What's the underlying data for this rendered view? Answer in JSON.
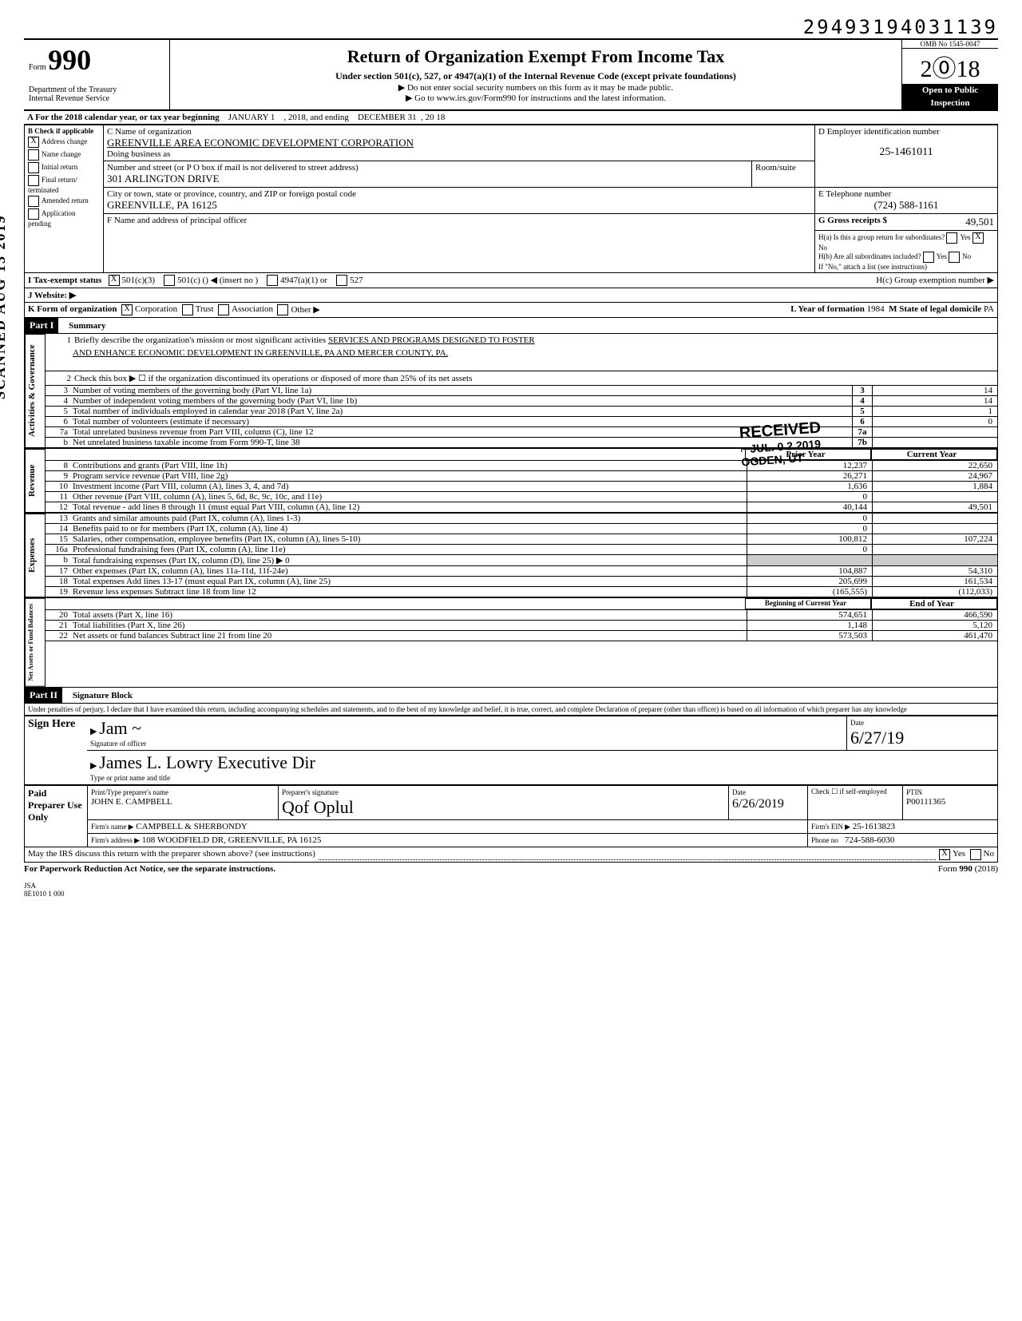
{
  "top_number": "29493194031139",
  "omb": "OMB No 1545-0047",
  "form_label": "Form",
  "form_number": "990",
  "dept1": "Department of the Treasury",
  "dept2": "Internal Revenue Service",
  "title": "Return of Organization Exempt From Income Tax",
  "subtitle": "Under section 501(c), 527, or 4947(a)(1) of the Internal Revenue Code (except private foundations)",
  "line_ssn": "▶ Do not enter social security numbers on this form as it may be made public.",
  "line_goto": "▶ Go to www.irs.gov/Form990 for instructions and the latest information.",
  "year_big": "2018",
  "open": "Open to Public",
  "inspection": "Inspection",
  "A_prefix": "A  For the 2018 calendar year, or tax year beginning",
  "A_begin": "JANUARY 1",
  "A_mid": ", 2018, and ending",
  "A_end": "DECEMBER 31",
  "A_yr": ", 20 18",
  "B_label": "B  Check if applicable",
  "B_opts": [
    "Address change",
    "Name change",
    "Initial return",
    "Final return/ terminated",
    "Amended return",
    "Application pending"
  ],
  "B_checked": 0,
  "C_label": "C Name of organization",
  "C_name": "GREENVILLE AREA ECONOMIC DEVELOPMENT CORPORATION",
  "C_dba": "Doing business as",
  "C_addr_label": "Number and street (or P O  box if mail is not delivered to street address)",
  "C_room": "Room/suite",
  "C_addr": "301 ARLINGTON DRIVE",
  "C_city_label": "City or town, state or province, country, and ZIP or foreign postal code",
  "C_city": "GREENVILLE, PA  16125",
  "D_label": "D Employer identification number",
  "D_val": "25-1461011",
  "E_label": "E Telephone number",
  "E_val": "(724) 588-1161",
  "F_label": "F Name and address of principal officer",
  "G_label": "G Gross receipts $",
  "G_val": "49,501",
  "Ha_label": "H(a) Is this a group return for subordinates?",
  "Hb_label": "H(b) Are all subordinates included?",
  "H_note": "If \"No,\" attach a list  (see instructions)",
  "Hc_label": "H(c) Group exemption number  ▶",
  "I_label": "I     Tax-exempt status",
  "I_501c3": "501(c)(3)",
  "I_501c": "501(c) (",
  "I_insert": ")  ◀    (insert no )",
  "I_4947": "4947(a)(1) or",
  "I_527": "527",
  "J_label": "J    Website: ▶",
  "K_label": "K   Form of organization",
  "K_corp": "Corporation",
  "K_trust": "Trust",
  "K_assoc": "Association",
  "K_other": "Other ▶",
  "L_label": "L Year of formation",
  "L_val": "1984",
  "M_label": "M State of legal domicile",
  "M_val": "PA",
  "part1": "Part I",
  "part1_t": "Summary",
  "summary": {
    "l1a": "Briefly describe the organization's mission or most significant activities",
    "l1b": "SERVICES AND PROGRAMS DESIGNED TO FOSTER",
    "l1c": "AND ENHANCE ECONOMIC DEVELOPMENT IN GREENVILLE, PA AND MERCER COUNTY, PA.",
    "l2": "Check this box ▶ ☐  if the organization discontinued its operations or disposed of more than 25% of its net assets",
    "rows_gov": [
      {
        "n": "3",
        "t": "Number of voting members of the governing body (Part VI, line 1a)",
        "c": "3",
        "v": "14"
      },
      {
        "n": "4",
        "t": "Number of independent voting members of the governing body (Part VI, line 1b)",
        "c": "4",
        "v": "14"
      },
      {
        "n": "5",
        "t": "Total number of individuals employed in calendar year 2018 (Part V, line 2a)",
        "c": "5",
        "v": "1"
      },
      {
        "n": "6",
        "t": "Total number of volunteers (estimate if necessary)",
        "c": "6",
        "v": "0"
      },
      {
        "n": "7a",
        "t": "Total unrelated business revenue from Part VIII, column (C), line 12",
        "c": "7a",
        "v": ""
      },
      {
        "n": "b",
        "t": "Net unrelated business taxable income from Form 990-T, line 38",
        "c": "7b",
        "v": ""
      }
    ],
    "col_prior": "Prior Year",
    "col_curr": "Current Year",
    "rows_rev": [
      {
        "n": "8",
        "t": "Contributions and grants (Part VIII, line 1h)",
        "p": "12,237",
        "c": "22,650"
      },
      {
        "n": "9",
        "t": "Program service revenue (Part VIII, line 2g)",
        "p": "26,271",
        "c": "24,967"
      },
      {
        "n": "10",
        "t": "Investment income (Part VIII, column (A), lines 3, 4, and 7d)",
        "p": "1,636",
        "c": "1,884"
      },
      {
        "n": "11",
        "t": "Other revenue (Part VIII, column (A), lines 5, 6d, 8c, 9c, 10c, and 11e)",
        "p": "0",
        "c": ""
      },
      {
        "n": "12",
        "t": "Total revenue - add lines 8 through 11 (must equal Part VIII, column (A), line 12)",
        "p": "40,144",
        "c": "49,501"
      }
    ],
    "rows_exp": [
      {
        "n": "13",
        "t": "Grants and similar amounts paid (Part IX, column (A), lines 1-3)",
        "p": "0",
        "c": ""
      },
      {
        "n": "14",
        "t": "Benefits paid to or for members (Part IX, column (A), line 4)",
        "p": "0",
        "c": ""
      },
      {
        "n": "15",
        "t": "Salaries, other compensation, employee benefits (Part IX, column (A), lines 5-10)",
        "p": "100,812",
        "c": "107,224"
      },
      {
        "n": "16a",
        "t": "Professional fundraising fees (Part IX, column (A), line 11e)",
        "p": "0",
        "c": ""
      },
      {
        "n": "b",
        "t": "Total fundraising expenses (Part IX, column (D), line 25) ▶  0",
        "p": "",
        "c": "",
        "noval": true
      },
      {
        "n": "17",
        "t": "Other expenses (Part IX, column (A), lines 11a-11d, 11f-24e)",
        "p": "104,887",
        "c": "54,310"
      },
      {
        "n": "18",
        "t": "Total expenses  Add lines 13-17 (must equal Part IX, column (A), line 25)",
        "p": "205,699",
        "c": "161,534"
      },
      {
        "n": "19",
        "t": "Revenue less expenses  Subtract line 18 from line 12",
        "p": "(165,555)",
        "c": "(112,033)"
      }
    ],
    "col_boy": "Beginning of Current Year",
    "col_eoy": "End of Year",
    "rows_net": [
      {
        "n": "20",
        "t": "Total assets (Part X, line 16)",
        "p": "574,651",
        "c": "466,590"
      },
      {
        "n": "21",
        "t": "Total liabilities (Part X, line 26)",
        "p": "1,148",
        "c": "5,120"
      },
      {
        "n": "22",
        "t": "Net assets or fund balances  Subtract line 21 from line 20",
        "p": "573,503",
        "c": "461,470"
      }
    ]
  },
  "vlabels": {
    "gov": "Activities & Governance",
    "rev": "Revenue",
    "exp": "Expenses",
    "net": "Net Assets or Fund Balances"
  },
  "part2": "Part II",
  "part2_t": "Signature Block",
  "perjury": "Under penalties of perjury, I declare that I have examined this return, including accompanying schedules and statements, and to the best of my knowledge and belief, it is true, correct, and complete  Declaration of preparer (other than officer) is based on all information of which preparer has any knowledge",
  "sign_here": "Sign Here",
  "sig_officer_lbl": "Signature of officer",
  "sig_date_lbl": "Date",
  "sig_name_lbl": "Type or print name and title",
  "sig_name": "James L. Lowry   Executive Dir",
  "sig_date": "6/27/19",
  "paid_label": "Paid Preparer Use Only",
  "pp_name_lbl": "Print/Type preparer's name",
  "pp_name": "JOHN E. CAMPBELL",
  "pp_sig_lbl": "Preparer's signature",
  "pp_date_lbl": "Date",
  "pp_date": "6/26/2019",
  "pp_check_lbl": "Check ☐ if self-employed",
  "pp_ptin_lbl": "PTIN",
  "pp_ptin": "P00111365",
  "firm_name_lbl": "Firm's name   ▶",
  "firm_name": "CAMPBELL & SHERBONDY",
  "firm_ein_lbl": "Firm's EIN  ▶",
  "firm_ein": "25-1613823",
  "firm_addr_lbl": "Firm's address ▶",
  "firm_addr": "108 WOODFIELD DR, GREENVILLE, PA 16125",
  "phone_lbl": "Phone no",
  "phone": "724-588-6030",
  "irs_discuss": "May the IRS discuss this return with the preparer shown above? (see instructions)",
  "yes": "Yes",
  "no": "No",
  "paperwork": "For Paperwork Reduction Act Notice, see the separate instructions.",
  "form_footer": "Form 990 (2018)",
  "jsa": "JSA",
  "jsa2": "8E1010 1 000",
  "scanned": "SCANNED  AUG 13 2019",
  "stamp": {
    "received": "RECEIVED",
    "date": "JUL. 0 2.2019",
    "ogden": "OGDEN, UT",
    "stamp2017": "2017"
  }
}
